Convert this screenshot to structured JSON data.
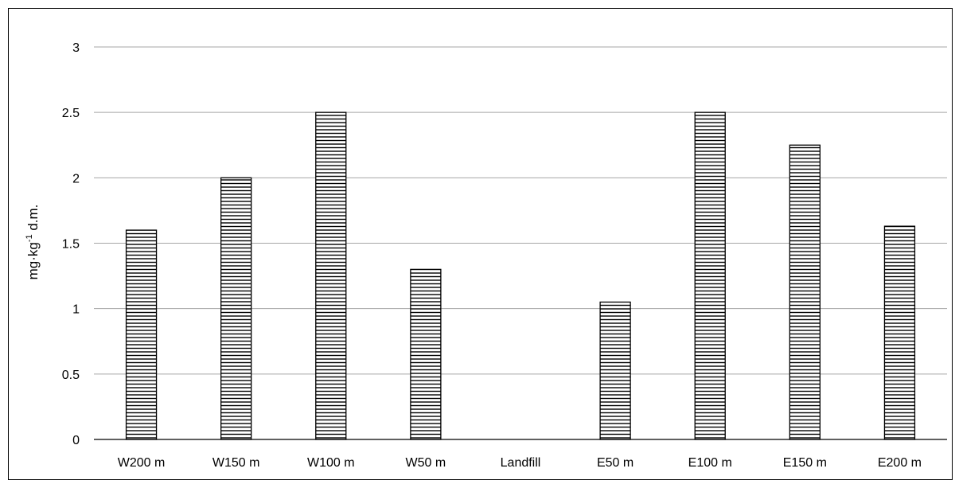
{
  "chart_data": {
    "type": "bar",
    "categories": [
      "W200 m",
      "W150 m",
      "W100 m",
      "W50 m",
      "Landfill",
      "E50 m",
      "E100 m",
      "E150 m",
      "E200 m"
    ],
    "values": [
      1.6,
      2.0,
      2.5,
      1.3,
      0,
      1.05,
      2.5,
      2.25,
      1.63
    ],
    "title": "",
    "xlabel": "",
    "ylabel": {
      "prefix": "mg·kg",
      "superscript": "-1",
      "suffix": " d.m."
    },
    "ylim": [
      0,
      3
    ],
    "yticks": [
      "0",
      "0.5",
      "1",
      "1.5",
      "2",
      "2.5",
      "3"
    ],
    "grid": true,
    "legend": "none",
    "bar_fill": "horizontal-hatch",
    "colors": {
      "hatch_line": "#000000",
      "bar_bg": "#ffffff",
      "gridline": "#a6a6a6",
      "axis": "#000000"
    }
  }
}
